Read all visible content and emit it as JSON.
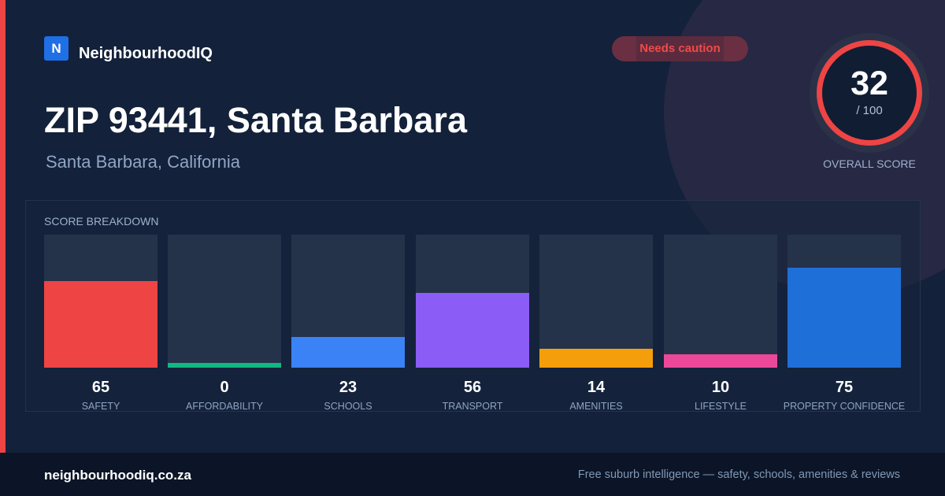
{
  "brand": {
    "logo_letter": "N",
    "name": "NeighbourhoodIQ"
  },
  "badge": {
    "label": "Needs caution",
    "color": "#ef4a4a"
  },
  "location": {
    "title": "ZIP 93441, Santa Barbara",
    "subtitle": "Santa Barbara, California"
  },
  "overall_score": {
    "value": "32",
    "max_label": "/ 100",
    "caption": "OVERALL SCORE",
    "ring_color": "#ef4444"
  },
  "breakdown": {
    "heading": "SCORE BREAKDOWN",
    "metrics": [
      {
        "key": "safety",
        "value": 65,
        "label": "SAFETY",
        "color": "#ef4444"
      },
      {
        "key": "affordability",
        "value": 0,
        "label": "AFFORDABILITY",
        "color": "#10b981"
      },
      {
        "key": "schools",
        "value": 23,
        "label": "SCHOOLS",
        "color": "#3b82f6"
      },
      {
        "key": "transport",
        "value": 56,
        "label": "TRANSPORT",
        "color": "#8b5cf6"
      },
      {
        "key": "amenities",
        "value": 14,
        "label": "AMENITIES",
        "color": "#f59e0b"
      },
      {
        "key": "lifestyle",
        "value": 10,
        "label": "LIFESTYLE",
        "color": "#ec4899"
      },
      {
        "key": "property_confidence",
        "value": 75,
        "label": "PROPERTY CONFIDENCE",
        "color": "#1f6fd8"
      }
    ]
  },
  "footer": {
    "domain": "neighbourhoodiq.co.za",
    "tagline": "Free suburb intelligence — safety, schools, amenities & reviews"
  }
}
